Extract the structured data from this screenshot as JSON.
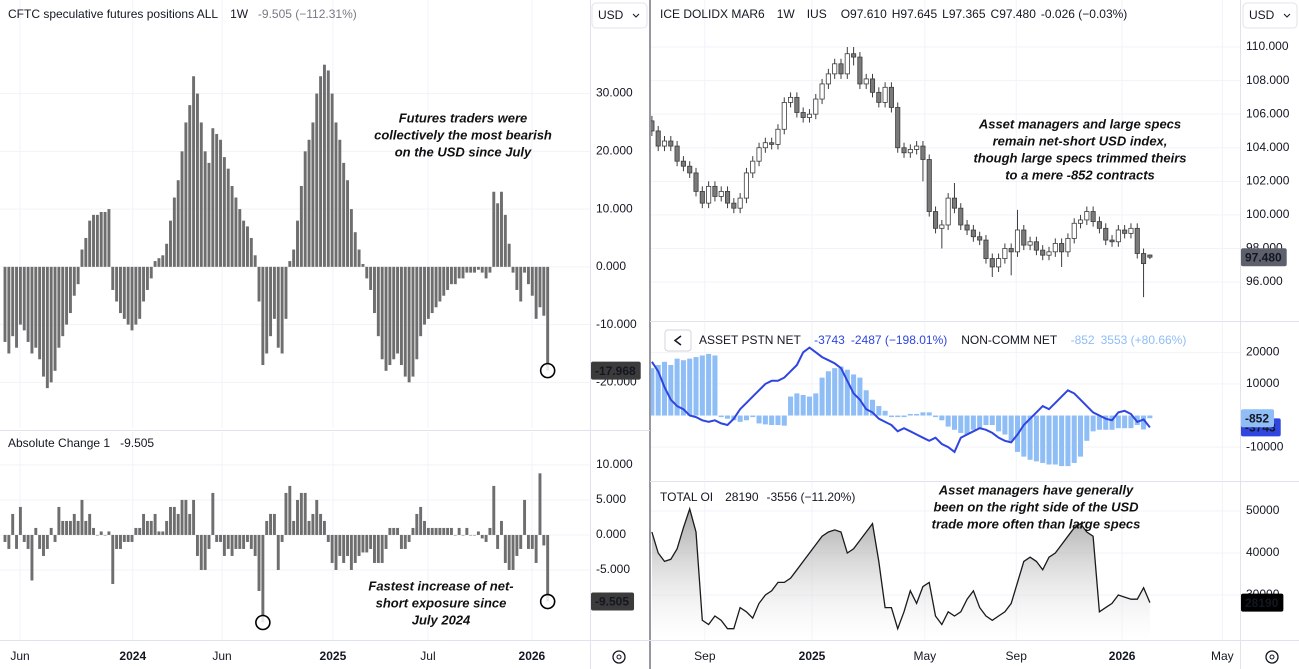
{
  "chart_data": [
    {
      "type": "bar",
      "title": "CFTC speculative futures positions ALL",
      "interval": "1W",
      "change": "-9.505 (−112.31%)",
      "currency": "USD",
      "color": "#6e6e6e",
      "grid": true,
      "values": [
        -13,
        -15,
        -12,
        -14,
        -10,
        -11,
        -13,
        -15,
        -14,
        -16,
        -19,
        -21,
        -20,
        -18,
        -14,
        -12,
        -10,
        -8,
        -5,
        -3,
        3,
        5,
        8,
        9,
        9,
        9.5,
        9.5,
        10,
        -4,
        -6,
        -8,
        -9,
        -10,
        -11,
        -10,
        -9,
        -6,
        -4,
        -2,
        1,
        1.5,
        2,
        4,
        8,
        12,
        15,
        20,
        25,
        28,
        33,
        30,
        25,
        20,
        18,
        24,
        23,
        22,
        19,
        17,
        14,
        12,
        10,
        8,
        7,
        5,
        2,
        -6,
        -17,
        -15,
        -12,
        -9,
        -14,
        -15,
        -9,
        1,
        3,
        8,
        14,
        20,
        22,
        25,
        30,
        33,
        35,
        34,
        30,
        25,
        22,
        18,
        15,
        10,
        6,
        3,
        0.5,
        -2,
        -4,
        -8,
        -12,
        -16,
        -18,
        -17,
        -16,
        -15,
        -17,
        -19,
        -20,
        -19,
        -16,
        -12,
        -10,
        -9,
        -8,
        -7,
        -6,
        -5,
        -4,
        -3,
        -3,
        -2,
        -2,
        -1,
        -1,
        -1,
        -0.5,
        -1,
        -2,
        -1,
        13,
        11,
        13,
        9,
        4,
        -1,
        -4,
        -6,
        -1,
        -3,
        -5,
        -9,
        -7,
        -8.463,
        -17.968
      ],
      "xlim": [
        -1.3,
        152
      ],
      "ylim": [
        -27.9,
        46.2
      ],
      "yticks": [
        {
          "value": 30,
          "label": "30.000"
        },
        {
          "value": 20,
          "label": "20.000"
        },
        {
          "value": 10,
          "label": "10.000"
        },
        {
          "value": 0,
          "label": "0.000"
        },
        {
          "value": -10,
          "label": "-10.000"
        },
        {
          "value": -20,
          "label": "-20.000"
        }
      ],
      "annotation": [
        "Futures traders were",
        "collectively the most bearish",
        "on the USD since July"
      ]
    },
    {
      "type": "bar",
      "title": "Absolute Change 1",
      "color": "#6e6e6e",
      "grid": true,
      "values": [
        -1,
        -2,
        3,
        -2,
        4,
        -1,
        -2,
        -6.5,
        1,
        -2,
        -3,
        -2,
        1,
        -1,
        4,
        2,
        2,
        2,
        3,
        2,
        5,
        2,
        3,
        1,
        0,
        0.5,
        0,
        0.5,
        -7,
        -2,
        -2,
        -1,
        -1,
        -1,
        1,
        1,
        3,
        2,
        2,
        3,
        0.5,
        0.5,
        2,
        4,
        4,
        3,
        5,
        5,
        3,
        5,
        -3,
        -5,
        -5,
        -2,
        6,
        -1,
        -1,
        -3,
        -2,
        -3,
        -2,
        -2,
        -2,
        -1,
        -2,
        -3,
        -8,
        -12.5,
        2,
        3,
        3,
        -5,
        -1,
        6,
        7,
        2,
        5,
        6,
        6,
        2,
        3,
        5,
        3,
        2,
        -1,
        -4,
        -5,
        -3,
        -4,
        -3,
        -5,
        -4,
        -3,
        -2.5,
        -2.5,
        -2,
        -4,
        -4,
        -4,
        -2,
        1,
        1,
        1,
        -2,
        -2,
        -1,
        1,
        3,
        4,
        2,
        1,
        1,
        1,
        1,
        1,
        1,
        1,
        0,
        1,
        0,
        1,
        0,
        0,
        0.5,
        -0.5,
        -1,
        1,
        7,
        -2,
        2,
        -4,
        -5,
        -5,
        -3,
        -2,
        5,
        -2,
        -2,
        -4,
        8.8,
        -1.5,
        -9.505
      ],
      "xlim": [
        -1.3,
        152
      ],
      "ylim": [
        -15,
        14.7
      ],
      "yticks": [
        {
          "value": 10,
          "label": "10.000"
        },
        {
          "value": 5,
          "label": "5.000"
        },
        {
          "value": 0,
          "label": "0.000"
        },
        {
          "value": -5,
          "label": "-5.000"
        }
      ],
      "xticks": [
        {
          "value": 3.9,
          "label": "Jun"
        },
        {
          "value": 33.2,
          "label": "2024"
        },
        {
          "value": 56.4,
          "label": "Jun"
        },
        {
          "value": 85.2,
          "label": "2025"
        },
        {
          "value": 109.9,
          "label": "Jul"
        },
        {
          "value": 136.9,
          "label": "2026"
        }
      ],
      "annotation": [
        "Fastest increase of net-",
        "short exposure since",
        "July 2024"
      ]
    },
    {
      "type": "candlestick",
      "title": "ICE DOLIDX MAR6",
      "interval": "1W",
      "exchange": "IUS",
      "ohlc_text": [
        "O97.610",
        "H97.645",
        "L97.365",
        "C97.480",
        "-0.026 (−0.03%)"
      ],
      "price_tag": "97.480",
      "currency": "USD",
      "up_color": "#ffffff",
      "down_color": "#7a7a7a",
      "wick_color": "#3d3d3d",
      "grid": true,
      "candles": [
        [
          105.6,
          105.9,
          104.7,
          105.0
        ],
        [
          105.0,
          105.3,
          103.8,
          104.1
        ],
        [
          104.1,
          104.7,
          103.8,
          104.4
        ],
        [
          104.4,
          104.7,
          103.8,
          104.1
        ],
        [
          104.1,
          104.4,
          102.9,
          103.2
        ],
        [
          103.2,
          103.5,
          102.6,
          102.9
        ],
        [
          102.9,
          103.2,
          102.2,
          102.5
        ],
        [
          102.5,
          102.8,
          101.1,
          101.4
        ],
        [
          101.4,
          101.7,
          100.4,
          100.7
        ],
        [
          100.7,
          102.0,
          100.4,
          101.7
        ],
        [
          101.7,
          102.0,
          100.8,
          101.1
        ],
        [
          101.1,
          101.7,
          100.8,
          101.4
        ],
        [
          101.4,
          101.7,
          100.4,
          100.7
        ],
        [
          100.7,
          101.0,
          100.1,
          100.4
        ],
        [
          100.4,
          101.3,
          100.1,
          101.0
        ],
        [
          101.0,
          102.8,
          100.7,
          102.5
        ],
        [
          102.5,
          103.5,
          102.2,
          103.2
        ],
        [
          103.2,
          104.3,
          102.9,
          104.0
        ],
        [
          104.0,
          104.6,
          103.7,
          104.3
        ],
        [
          104.3,
          104.6,
          103.9,
          104.2
        ],
        [
          104.2,
          105.4,
          103.9,
          105.1
        ],
        [
          105.1,
          107.0,
          104.8,
          106.7
        ],
        [
          106.7,
          107.3,
          106.4,
          107.0
        ],
        [
          107.0,
          107.3,
          105.8,
          106.1
        ],
        [
          106.1,
          106.4,
          105.5,
          105.8
        ],
        [
          105.8,
          106.3,
          105.5,
          106.0
        ],
        [
          106.0,
          107.2,
          105.7,
          106.9
        ],
        [
          106.9,
          108.1,
          106.6,
          107.8
        ],
        [
          107.8,
          108.7,
          107.5,
          108.4
        ],
        [
          108.4,
          109.3,
          108.1,
          109.0
        ],
        [
          109.0,
          109.3,
          108.1,
          108.4
        ],
        [
          108.4,
          110.0,
          108.1,
          109.6
        ],
        [
          109.6,
          110.0,
          108.9,
          109.4
        ],
        [
          109.4,
          109.7,
          107.5,
          107.8
        ],
        [
          107.8,
          108.4,
          107.5,
          108.1
        ],
        [
          108.1,
          108.4,
          107.0,
          107.3
        ],
        [
          107.3,
          107.6,
          106.4,
          106.7
        ],
        [
          106.7,
          107.9,
          106.4,
          107.6
        ],
        [
          107.6,
          107.9,
          106.1,
          106.4
        ],
        [
          106.4,
          106.7,
          103.7,
          104.0
        ],
        [
          104.0,
          104.3,
          103.4,
          103.7
        ],
        [
          103.7,
          104.2,
          103.4,
          103.9
        ],
        [
          103.9,
          104.4,
          103.6,
          104.1
        ],
        [
          104.1,
          104.4,
          102.0,
          103.3
        ],
        [
          103.3,
          103.6,
          99.9,
          100.2
        ],
        [
          100.2,
          100.5,
          98.9,
          99.2
        ],
        [
          99.2,
          99.7,
          98.0,
          99.4
        ],
        [
          99.4,
          101.3,
          99.1,
          101.0
        ],
        [
          101.0,
          101.9,
          100.1,
          100.4
        ],
        [
          100.4,
          100.7,
          99.1,
          99.4
        ],
        [
          99.4,
          99.7,
          98.8,
          99.1
        ],
        [
          99.1,
          99.4,
          98.4,
          98.7
        ],
        [
          98.7,
          99.0,
          98.2,
          98.5
        ],
        [
          98.5,
          98.8,
          97.1,
          97.4
        ],
        [
          97.4,
          97.7,
          96.3,
          96.9
        ],
        [
          96.9,
          97.7,
          96.6,
          97.4
        ],
        [
          97.4,
          98.3,
          97.1,
          98.0
        ],
        [
          98.0,
          98.3,
          96.4,
          97.8
        ],
        [
          97.8,
          100.3,
          97.5,
          99.1
        ],
        [
          99.1,
          99.4,
          97.9,
          98.2
        ],
        [
          98.2,
          98.7,
          97.9,
          98.4
        ],
        [
          98.4,
          98.7,
          97.6,
          97.9
        ],
        [
          97.9,
          98.2,
          97.3,
          97.6
        ],
        [
          97.6,
          98.1,
          97.3,
          97.8
        ],
        [
          97.8,
          98.6,
          97.5,
          98.3
        ],
        [
          98.3,
          98.6,
          96.9,
          97.8
        ],
        [
          97.8,
          98.9,
          97.5,
          98.6
        ],
        [
          98.6,
          99.8,
          98.3,
          99.5
        ],
        [
          99.5,
          100.0,
          99.2,
          99.7
        ],
        [
          99.7,
          100.5,
          99.4,
          100.2
        ],
        [
          100.2,
          100.5,
          99.3,
          99.6
        ],
        [
          99.6,
          99.9,
          98.9,
          99.2
        ],
        [
          99.2,
          99.5,
          98.2,
          98.5
        ],
        [
          98.5,
          98.8,
          98.1,
          98.4
        ],
        [
          98.4,
          99.4,
          98.1,
          99.1
        ],
        [
          99.1,
          99.4,
          98.6,
          98.9
        ],
        [
          98.9,
          99.5,
          98.6,
          99.2
        ],
        [
          99.2,
          99.5,
          97.4,
          97.7
        ],
        [
          97.7,
          98.0,
          95.1,
          97.1
        ],
        [
          97.61,
          97.645,
          97.365,
          97.48
        ]
      ],
      "xlim": [
        -0.3,
        93.3
      ],
      "ylim": [
        93.74,
        112.8
      ],
      "yticks": [
        {
          "value": 110,
          "label": "110.000"
        },
        {
          "value": 108,
          "label": "108.000"
        },
        {
          "value": 106,
          "label": "106.000"
        },
        {
          "value": 104,
          "label": "104.000"
        },
        {
          "value": 102,
          "label": "102.000"
        },
        {
          "value": 100,
          "label": "100.000"
        },
        {
          "value": 98,
          "label": "98.000"
        },
        {
          "value": 96,
          "label": "96.000"
        }
      ],
      "annotation": [
        "Asset managers and large specs",
        "remain net-short USD index,",
        "though large specs trimmed theirs",
        "to a mere -852 contracts"
      ]
    },
    {
      "type": "combo",
      "grid": true,
      "series": [
        {
          "name": "ASSET PSTN NET",
          "type": "line",
          "color": "#2f45e0",
          "change": "-2487 (−198.01%)",
          "values": [
            17000,
            14000,
            9000,
            5000,
            3000,
            2000,
            0,
            -500,
            -1500,
            -2000,
            -1500,
            -2500,
            -3000,
            -1000,
            2000,
            4000,
            6000,
            8000,
            10000,
            11000,
            11000,
            12000,
            14000,
            16000,
            20000,
            21500,
            20000,
            18500,
            17500,
            16500,
            15000,
            11000,
            7000,
            5000,
            2000,
            1000,
            -1000,
            -2000,
            -3000,
            -5000,
            -4000,
            -5000,
            -6000,
            -7000,
            -8000,
            -7000,
            -9000,
            -10000,
            -11500,
            -7000,
            -6000,
            -5000,
            -4000,
            -4500,
            -5500,
            -7000,
            -8000,
            -8500,
            -6000,
            -3000,
            -1000,
            1000,
            3000,
            2000,
            4000,
            6000,
            8000,
            7000,
            5000,
            3000,
            1000,
            0,
            -1000,
            -1500,
            1000,
            1500,
            500,
            -2000,
            -1256,
            -3743
          ]
        },
        {
          "name": "NON-COMM NET",
          "type": "bar",
          "color": "#8fbdf6",
          "change": "3553 (+80.66%)",
          "values": [
            15000,
            16000,
            17000,
            16000,
            18000,
            17500,
            18000,
            18500,
            19000,
            19500,
            19000,
            -500,
            -1000,
            -1500,
            -2000,
            -1500,
            -500,
            -2500,
            -2800,
            -3000,
            -3000,
            -3200,
            6000,
            7000,
            6500,
            6000,
            7000,
            12000,
            14000,
            15000,
            15500,
            14500,
            13000,
            12000,
            8000,
            5000,
            3000,
            1500,
            -500,
            -500,
            -500,
            500,
            500,
            1000,
            1000,
            -500,
            -1500,
            -3500,
            -4500,
            -5500,
            -6000,
            -4500,
            -4000,
            -3000,
            -3000,
            -5000,
            -6000,
            -8000,
            -11500,
            -13000,
            -14000,
            -14500,
            -15000,
            -15500,
            -15500,
            -16000,
            -16000,
            -15000,
            -13000,
            -8000,
            -5000,
            -4500,
            -4500,
            -4500,
            -4000,
            -4000,
            -4000,
            -3000,
            -4405,
            -852
          ]
        }
      ],
      "xlim": [
        -0.3,
        93.3
      ],
      "ylim": [
        -20400,
        29600
      ],
      "yticks": [
        20000,
        10000,
        -10000
      ]
    },
    {
      "type": "area",
      "title": "TOTAL OI",
      "change": "-3556 (−11.20%)",
      "color": "#1a1a1a",
      "grid": true,
      "values": [
        45000,
        40000,
        38000,
        38500,
        41000,
        46000,
        50500,
        45000,
        24000,
        23000,
        25000,
        24000,
        22000,
        22000,
        27000,
        26000,
        24500,
        28000,
        30000,
        31000,
        33000,
        33000,
        34000,
        36000,
        38000,
        40000,
        42000,
        44000,
        45000,
        45500,
        45000,
        40000,
        41000,
        43000,
        45000,
        47000,
        38000,
        27000,
        27000,
        22000,
        26000,
        31000,
        28000,
        32000,
        33000,
        25000,
        23000,
        26000,
        25000,
        26000,
        29000,
        31000,
        27000,
        25000,
        24000,
        25000,
        26000,
        28000,
        33000,
        38000,
        39000,
        38000,
        36000,
        39000,
        40000,
        42000,
        44000,
        46000,
        47000,
        45000,
        44000,
        26000,
        27000,
        28000,
        30000,
        29500,
        29000,
        29000,
        31746,
        28190
      ],
      "xlim": [
        -0.3,
        93.3
      ],
      "ylim": [
        19300,
        56900
      ],
      "yticks": [
        50000,
        40000,
        30000
      ],
      "xticks": [
        {
          "value": 8.4,
          "label": "Sep"
        },
        {
          "value": 25.4,
          "label": "2025"
        },
        {
          "value": 43.3,
          "label": "May"
        },
        {
          "value": 57.8,
          "label": "Sep"
        },
        {
          "value": 74.6,
          "label": "2026"
        },
        {
          "value": 90.5,
          "label": "May"
        }
      ],
      "annotation": [
        "Asset managers have generally",
        "been on the right side of the USD",
        "trade more often than large specs"
      ]
    }
  ]
}
